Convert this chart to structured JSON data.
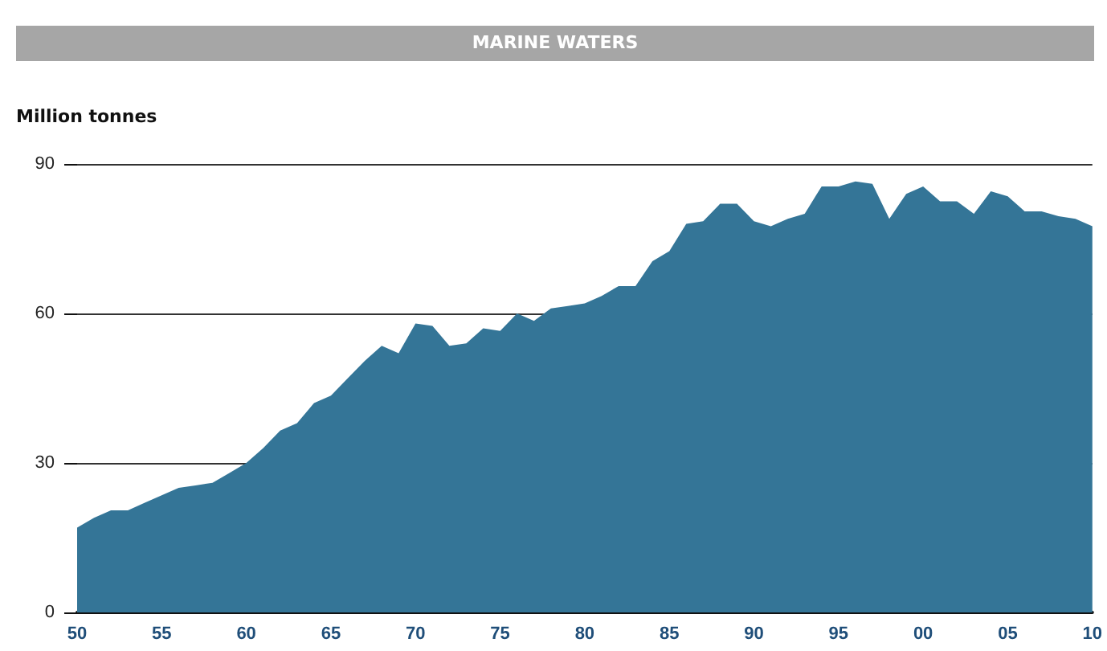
{
  "chart_data": {
    "type": "area",
    "title": "MARINE WATERS",
    "ylabel": "Million tonnes",
    "x": [
      1950,
      1951,
      1952,
      1953,
      1954,
      1955,
      1956,
      1957,
      1958,
      1959,
      1960,
      1961,
      1962,
      1963,
      1964,
      1965,
      1966,
      1967,
      1968,
      1969,
      1970,
      1971,
      1972,
      1973,
      1974,
      1975,
      1976,
      1977,
      1978,
      1979,
      1980,
      1981,
      1982,
      1983,
      1984,
      1985,
      1986,
      1987,
      1988,
      1989,
      1990,
      1991,
      1992,
      1993,
      1994,
      1995,
      1996,
      1997,
      1998,
      1999,
      2000,
      2001,
      2002,
      2003,
      2004,
      2005,
      2006,
      2007,
      2008,
      2009,
      2010
    ],
    "series": [
      {
        "color": "#347597",
        "values": [
          17,
          19,
          20.5,
          20.5,
          22,
          23.5,
          25,
          25.5,
          26,
          28,
          30,
          33,
          36.5,
          38,
          42,
          43.5,
          47,
          50.5,
          53.5,
          52,
          58,
          57.5,
          53.5,
          54,
          57,
          56.5,
          60,
          58.5,
          61,
          61.5,
          62,
          63.5,
          65.5,
          65.5,
          70.5,
          72.5,
          78,
          78.5,
          82,
          82,
          78.5,
          77.5,
          79,
          80,
          85.5,
          85.5,
          86.5,
          86,
          79,
          84,
          85.5,
          82.5,
          82.5,
          80,
          84.5,
          83.5,
          80.5,
          80.5,
          79.5,
          79,
          77.5
        ]
      }
    ],
    "xlim": [
      1950,
      2010
    ],
    "xticks": [
      {
        "value": 1950,
        "label": "50"
      },
      {
        "value": 1955,
        "label": "55"
      },
      {
        "value": 1960,
        "label": "60"
      },
      {
        "value": 1965,
        "label": "65"
      },
      {
        "value": 1970,
        "label": "70"
      },
      {
        "value": 1975,
        "label": "75"
      },
      {
        "value": 1980,
        "label": "80"
      },
      {
        "value": 1985,
        "label": "85"
      },
      {
        "value": 1990,
        "label": "90"
      },
      {
        "value": 1995,
        "label": "95"
      },
      {
        "value": 2000,
        "label": "00"
      },
      {
        "value": 2005,
        "label": "05"
      },
      {
        "value": 2010,
        "label": "10"
      }
    ],
    "ylim": [
      0,
      90
    ],
    "yticks": [
      0,
      30,
      60,
      90
    ],
    "grid": "y"
  }
}
